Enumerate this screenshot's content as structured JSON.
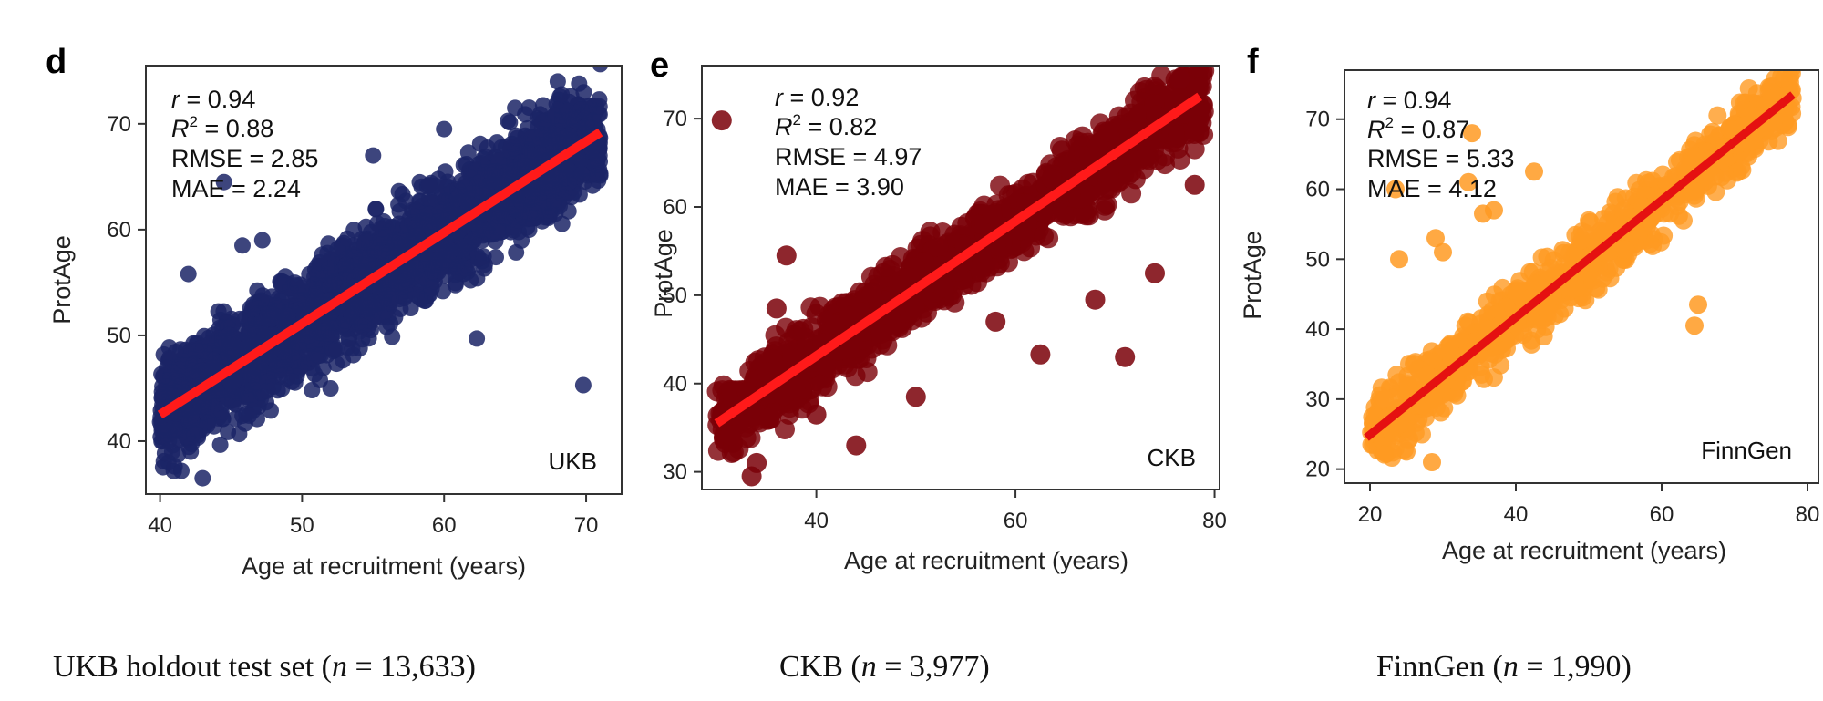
{
  "chart_data": [
    {
      "type": "scatter",
      "panel": "d",
      "cohort_label": "UKB",
      "caption": {
        "prefix": "UKB holdout test set (",
        "n": "n",
        "suffix": " = 13,633)"
      },
      "stats": {
        "r": "0.94",
        "r2": "0.88",
        "rmse": "2.85",
        "mae": "2.24"
      },
      "stat_labels": {
        "r": "r",
        "r2_base": "R",
        "r2_sup": "2",
        "rmse": "RMSE",
        "mae": "MAE",
        "eq": " = "
      },
      "xlabel": "Age at recruitment (years)",
      "ylabel": "ProtAge",
      "xlim": [
        39,
        72.5
      ],
      "ylim": [
        35,
        75.5
      ],
      "xticks": [
        40,
        50,
        60,
        70
      ],
      "yticks": [
        40,
        50,
        60,
        70
      ],
      "point_color": "#1b2466",
      "line_color": "#ff1a1a",
      "fit_line": {
        "x": [
          40,
          71
        ],
        "y": [
          42.5,
          69.2
        ]
      },
      "point_cloud": {
        "x_range": [
          40,
          71
        ],
        "half_width": 7.5,
        "n_points": 2600
      },
      "outliers": {
        "x": [
          69.8,
          62.3,
          44.5,
          45.8,
          47.2,
          42.0,
          55.0,
          60.0,
          70.8,
          69.5,
          41.5,
          43.0,
          65.0,
          68.0,
          52.0
        ],
        "y": [
          45.3,
          49.7,
          64.5,
          58.5,
          59.0,
          55.8,
          67.0,
          69.5,
          66.5,
          73.8,
          37.2,
          36.5,
          71.5,
          74.0,
          45.0
        ]
      },
      "grid": false,
      "legend": "none"
    },
    {
      "type": "scatter",
      "panel": "e",
      "cohort_label": "CKB",
      "caption": {
        "prefix": "CKB (",
        "n": "n",
        "suffix": " = 3,977)"
      },
      "stats": {
        "r": "0.92",
        "r2": "0.82",
        "rmse": "4.97",
        "mae": "3.90"
      },
      "stat_labels": {
        "r": "r",
        "r2_base": "R",
        "r2_sup": "2",
        "rmse": "RMSE",
        "mae": "MAE",
        "eq": " = "
      },
      "xlabel": "Age at recruitment (years)",
      "ylabel": "ProtAge",
      "xlim": [
        28.5,
        80.5
      ],
      "ylim": [
        28,
        76
      ],
      "xticks": [
        40,
        60,
        80
      ],
      "yticks": [
        30,
        40,
        50,
        60,
        70
      ],
      "point_color": "#7a0008",
      "line_color": "#ff1a1a",
      "fit_line": {
        "x": [
          30,
          78.5
        ],
        "y": [
          35.5,
          72.5
        ]
      },
      "point_cloud": {
        "x_range": [
          30,
          79
        ],
        "half_width": 6.5,
        "n_points": 1400
      },
      "outliers": {
        "x": [
          30.5,
          71.0,
          62.5,
          58.0,
          37.0,
          44.0,
          36.0,
          33.5,
          34.0,
          40.0,
          74.0,
          78.0,
          68.0,
          50.0,
          76.5
        ],
        "y": [
          69.8,
          43.0,
          43.3,
          47.0,
          54.5,
          33.0,
          48.5,
          29.5,
          31.0,
          36.5,
          52.5,
          62.5,
          49.5,
          38.5,
          74.5
        ]
      },
      "grid": false,
      "legend": "none"
    },
    {
      "type": "scatter",
      "panel": "f",
      "cohort_label": "FinnGen",
      "caption": {
        "prefix": "FinnGen (",
        "n": "n",
        "suffix": " = 1,990)"
      },
      "stats": {
        "r": "0.94",
        "r2": "0.87",
        "rmse": "5.33",
        "mae": "4.12"
      },
      "stat_labels": {
        "r": "r",
        "r2_base": "R",
        "r2_sup": "2",
        "rmse": "RMSE",
        "mae": "MAE",
        "eq": " = "
      },
      "xlabel": "Age at recruitment (years)",
      "ylabel": "ProtAge",
      "xlim": [
        16.5,
        81.5
      ],
      "ylim": [
        18,
        77
      ],
      "xticks": [
        20,
        40,
        60,
        80
      ],
      "yticks": [
        20,
        30,
        40,
        50,
        60,
        70
      ],
      "point_color": "#ff9a22",
      "line_color": "#e51111",
      "fit_line": {
        "x": [
          19.5,
          78
        ],
        "y": [
          24.5,
          73.5
        ]
      },
      "point_cloud": {
        "x_range": [
          20,
          78
        ],
        "half_width": 7.0,
        "n_points": 1000
      },
      "outliers": {
        "x": [
          23.5,
          24.0,
          33.5,
          34.0,
          42.5,
          64.5,
          65.0,
          29.0,
          28.5,
          30.0,
          25.0,
          35.5,
          37.0,
          22.0
        ],
        "y": [
          60.0,
          50.0,
          61.0,
          68.0,
          62.5,
          40.5,
          43.5,
          53.0,
          21.0,
          51.0,
          22.5,
          56.5,
          57.0,
          30.0
        ]
      },
      "grid": false,
      "legend": "none"
    }
  ]
}
